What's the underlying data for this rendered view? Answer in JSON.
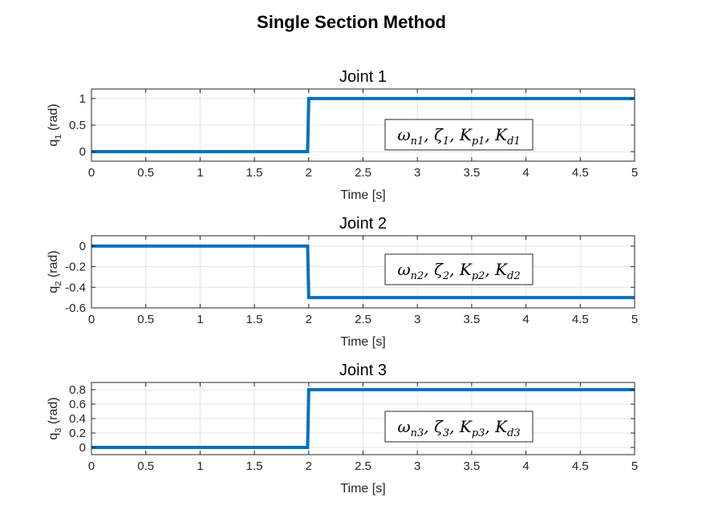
{
  "figure": {
    "title": "Single Section Method"
  },
  "chart_data": [
    {
      "type": "line",
      "title": "Joint 1",
      "xlabel": "Time [s]",
      "ylabel": {
        "prefix": "q",
        "subscript": "1",
        "suffix": " (rad)"
      },
      "xlim": [
        0,
        5
      ],
      "ylim": [
        -0.18,
        1.18
      ],
      "xticks": [
        0,
        0.5,
        1,
        1.5,
        2,
        2.5,
        3,
        3.5,
        4,
        4.5,
        5
      ],
      "xtick_labels": [
        "0",
        "0.5",
        "1",
        "1.5",
        "2",
        "2.5",
        "3",
        "3.5",
        "4",
        "4.5",
        "5"
      ],
      "yticks": [
        0,
        0.5,
        1
      ],
      "ytick_labels": [
        "0",
        "0.5",
        "1"
      ],
      "grid": true,
      "color": "#0072bd",
      "series": [
        {
          "x": [
            0,
            1.99,
            2.0,
            5
          ],
          "y": [
            0,
            0,
            1,
            1
          ]
        }
      ],
      "annotation": {
        "parts": [
          [
            "ω",
            "n1"
          ],
          [
            "ζ",
            "1"
          ],
          [
            "K",
            "p1"
          ],
          [
            "K",
            "d1"
          ]
        ]
      }
    },
    {
      "type": "line",
      "title": "Joint 2",
      "xlabel": "Time [s]",
      "ylabel": {
        "prefix": "q",
        "subscript": "2",
        "suffix": " (rad)"
      },
      "xlim": [
        0,
        5
      ],
      "ylim": [
        -0.6,
        0.1
      ],
      "xticks": [
        0,
        0.5,
        1,
        1.5,
        2,
        2.5,
        3,
        3.5,
        4,
        4.5,
        5
      ],
      "xtick_labels": [
        "0",
        "0.5",
        "1",
        "1.5",
        "2",
        "2.5",
        "3",
        "3.5",
        "4",
        "4.5",
        "5"
      ],
      "yticks": [
        -0.6,
        -0.4,
        -0.2,
        0
      ],
      "ytick_labels": [
        "-0.6",
        "-0.4",
        "-0.2",
        "0"
      ],
      "grid": true,
      "color": "#0072bd",
      "series": [
        {
          "x": [
            0,
            1.99,
            2.0,
            5
          ],
          "y": [
            0,
            0,
            -0.5,
            -0.5
          ]
        }
      ],
      "annotation": {
        "parts": [
          [
            "ω",
            "n2"
          ],
          [
            "ζ",
            "2"
          ],
          [
            "K",
            "p2"
          ],
          [
            "K",
            "d2"
          ]
        ]
      }
    },
    {
      "type": "line",
      "title": "Joint 3",
      "xlabel": "Time [s]",
      "ylabel": {
        "prefix": "q",
        "subscript": "3",
        "suffix": " (rad)"
      },
      "xlim": [
        0,
        5
      ],
      "ylim": [
        -0.1,
        0.9
      ],
      "xticks": [
        0,
        0.5,
        1,
        1.5,
        2,
        2.5,
        3,
        3.5,
        4,
        4.5,
        5
      ],
      "xtick_labels": [
        "0",
        "0.5",
        "1",
        "1.5",
        "2",
        "2.5",
        "3",
        "3.5",
        "4",
        "4.5",
        "5"
      ],
      "yticks": [
        0,
        0.2,
        0.4,
        0.6,
        0.8
      ],
      "ytick_labels": [
        "0",
        "0.2",
        "0.4",
        "0.6",
        "0.8"
      ],
      "grid": true,
      "color": "#0072bd",
      "series": [
        {
          "x": [
            0,
            1.99,
            2.0,
            5
          ],
          "y": [
            0,
            0,
            0.8,
            0.8
          ]
        }
      ],
      "annotation": {
        "parts": [
          [
            "ω",
            "n3"
          ],
          [
            "ζ",
            "3"
          ],
          [
            "K",
            "p3"
          ],
          [
            "K",
            "d3"
          ]
        ]
      }
    }
  ]
}
